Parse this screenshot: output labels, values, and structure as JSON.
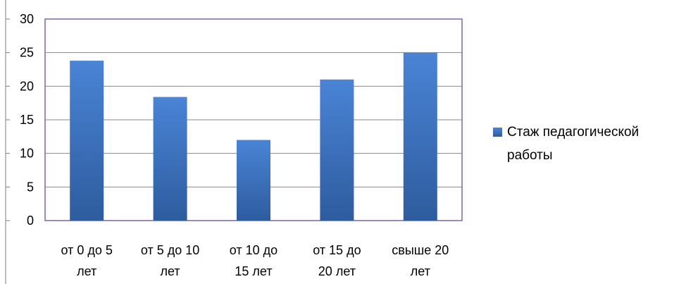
{
  "chart_data": {
    "type": "bar",
    "categories": [
      [
        "от 0 до 5",
        "лет"
      ],
      [
        "от 5 до 10",
        "лет"
      ],
      [
        "от 10 до",
        "15 лет"
      ],
      [
        "от 15 до",
        "20 лет"
      ],
      [
        "свыше 20",
        "лет"
      ]
    ],
    "series": [
      {
        "name": [
          "Стаж педагогической",
          "работы"
        ],
        "values": [
          23.8,
          18.4,
          12,
          21,
          25
        ]
      }
    ],
    "ylim": [
      0,
      30
    ],
    "yticks": [
      "0",
      "5",
      "10",
      "15",
      "20",
      "25",
      "30"
    ],
    "grid": true,
    "legend": "right",
    "colors": {
      "bar_top": "#4a84d6",
      "bar_bottom": "#2e5c9e",
      "plot_border": "#8064a2",
      "grid": "#8a8a8a",
      "axis": "#7f7f7f"
    }
  }
}
